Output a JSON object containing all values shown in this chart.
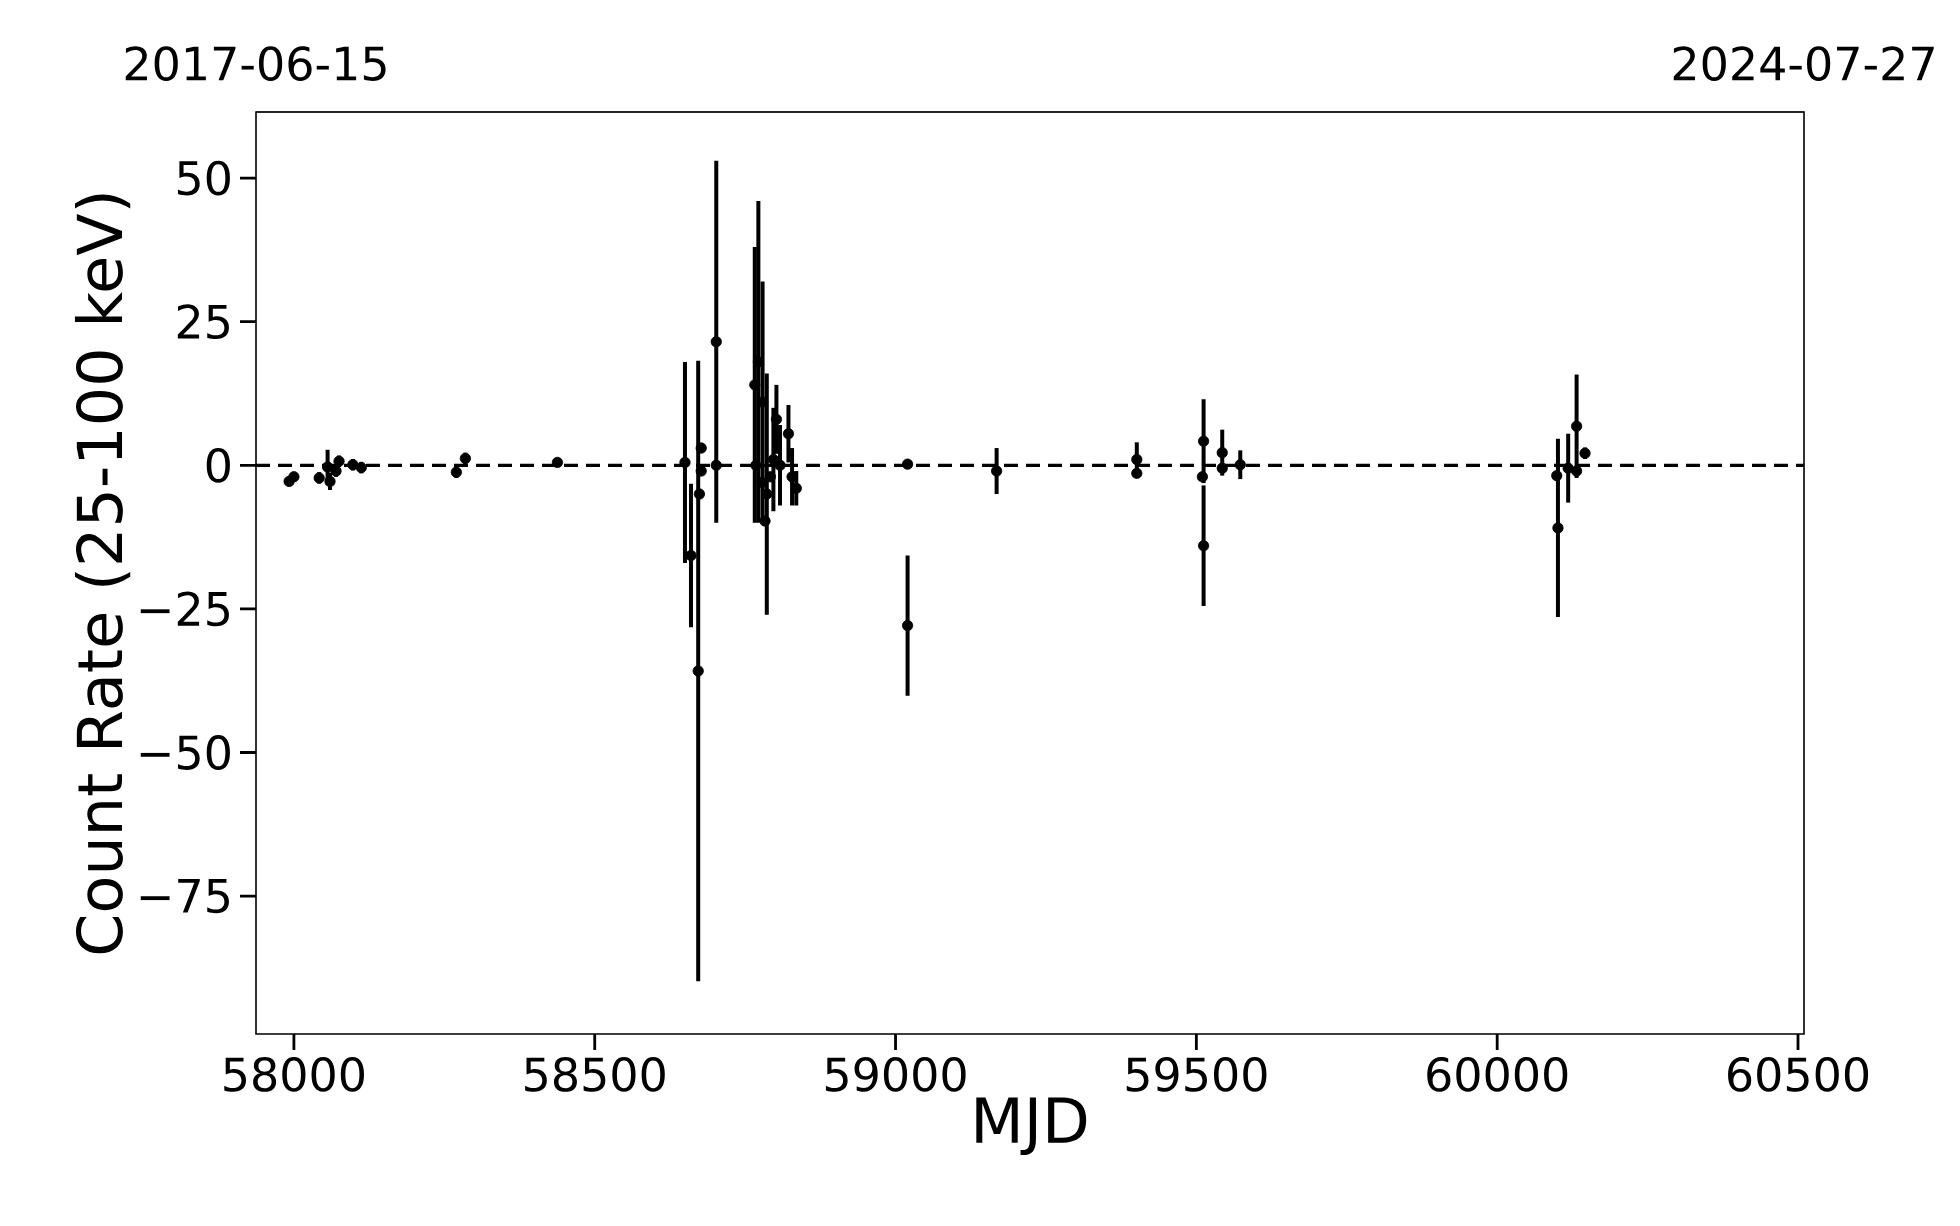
{
  "chart_data": {
    "type": "scatter",
    "xlabel": "MJD",
    "ylabel": "Count Rate (25-100 keV)",
    "color": "#000000",
    "marker": "circle",
    "x": [
      57992,
      58000,
      58042,
      58056,
      58060,
      58070,
      58075,
      58098,
      58112,
      58270,
      58285,
      58438,
      58650,
      58660,
      58672,
      58677,
      58677,
      58674,
      58702,
      58702,
      58768,
      58766,
      58772,
      58778,
      58779,
      58786,
      58783,
      58792,
      58797,
      58802,
      58808,
      58822,
      58828,
      58835,
      59020,
      59020,
      59168,
      59401,
      59401,
      59512,
      59510,
      59512,
      59543,
      59543,
      59573,
      60099,
      60101,
      60118,
      60132,
      60132,
      60146
    ],
    "values": [
      -2.8,
      -2,
      -2.2,
      -0.3,
      -2.8,
      -1,
      0.7,
      0.1,
      -0.4,
      -1.2,
      1.2,
      0.5,
      0.5,
      -15.7,
      -35.8,
      3,
      -1,
      -5,
      21.5,
      0,
      0,
      14,
      18,
      -3,
      11,
      -5,
      -9.7,
      -2,
      1,
      8,
      0,
      5.5,
      -2,
      -4,
      0.2,
      -27.9,
      -1,
      1,
      -1.4,
      4.2,
      -2,
      -14,
      2.2,
      -0.5,
      0.1,
      -1.8,
      -10.9,
      -0.5,
      6.8,
      -1,
      2.1
    ],
    "errors": [
      0.8,
      0.8,
      1,
      3,
      1.5,
      1,
      1,
      1,
      1,
      1,
      1,
      0.5,
      17.5,
      12.5,
      54,
      null,
      null,
      null,
      31.5,
      null,
      null,
      24,
      28,
      null,
      21,
      21,
      null,
      null,
      9,
      6,
      7,
      5,
      5,
      3,
      0.5,
      12.2,
      4,
      3,
      null,
      7.3,
      null,
      10.5,
      4,
      null,
      2.5,
      null,
      15.5,
      6,
      9,
      null,
      1
    ],
    "ref_lines": [
      {
        "axis": "y",
        "value": 0,
        "color": "#000000",
        "line_style": "dashed"
      }
    ],
    "xlim": [
      57937,
      60510
    ],
    "ylim": [
      -99,
      61.5
    ],
    "xticks": [
      58000,
      58500,
      59000,
      59500,
      60000,
      60500
    ],
    "yticks": [
      {
        "value": -75,
        "label": "−75"
      },
      {
        "value": -50,
        "label": "−50"
      },
      {
        "value": -25,
        "label": "−25"
      },
      0,
      25,
      50
    ],
    "x2lim": [
      "2017-06-15",
      "2024-07-27"
    ],
    "x2ticks": [
      "2017-06-15",
      "2024-07-27"
    ]
  }
}
